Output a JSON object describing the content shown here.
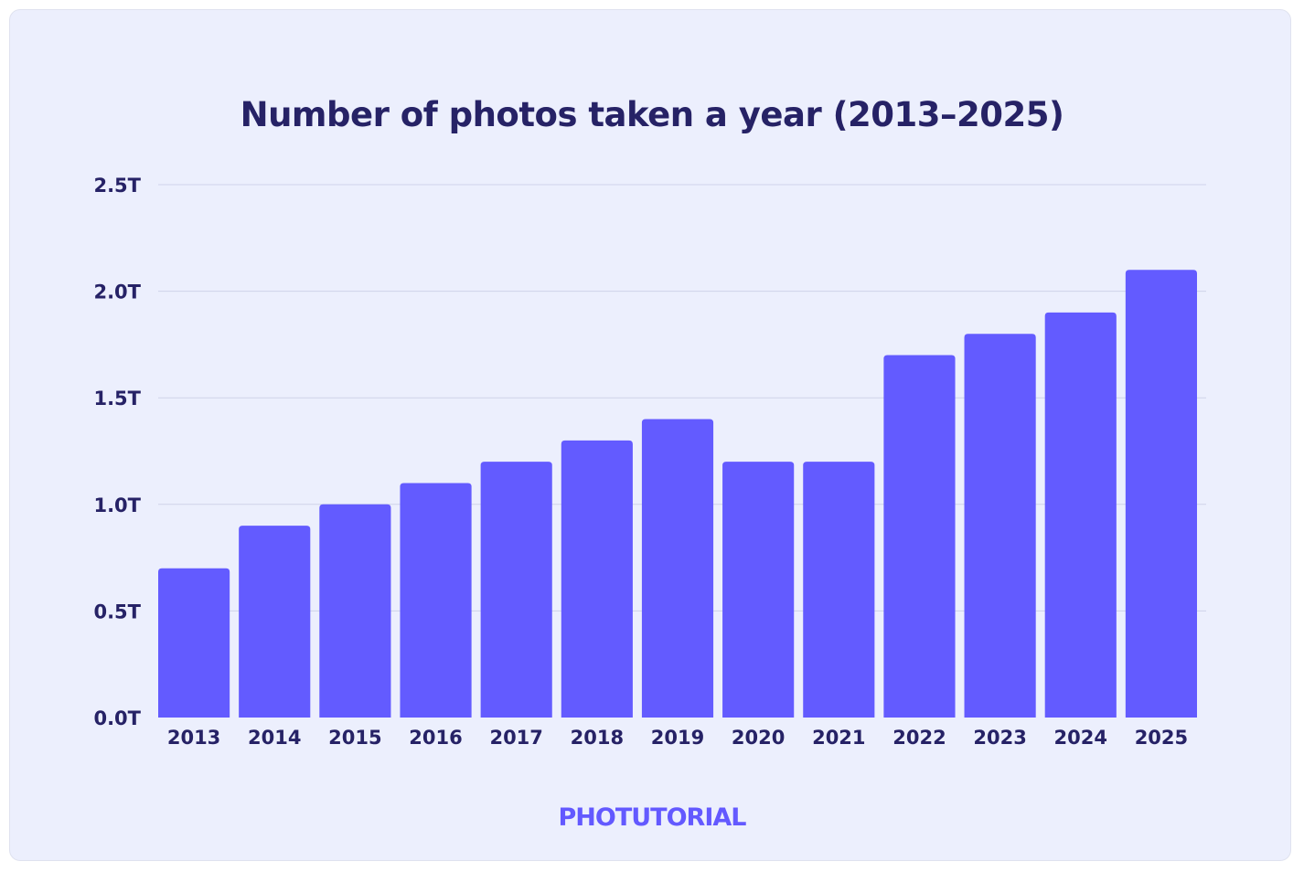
{
  "colors": {
    "bar": "#635bff",
    "title": "#262266",
    "grid": "#cfd3ea",
    "brand": "#6359ff",
    "background": "#eceffd"
  },
  "brand": "PHOTUTORIAL",
  "chart_data": {
    "type": "bar",
    "title": "Number of photos taken a year (2013–2025)",
    "xlabel": "",
    "ylabel": "",
    "categories": [
      "2013",
      "2014",
      "2015",
      "2016",
      "2017",
      "2018",
      "2019",
      "2020",
      "2021",
      "2022",
      "2023",
      "2024",
      "2025"
    ],
    "values": [
      0.7,
      0.9,
      1.0,
      1.1,
      1.2,
      1.3,
      1.4,
      1.2,
      1.2,
      1.7,
      1.8,
      1.9,
      2.1
    ],
    "unit": "T",
    "ylim": [
      0,
      2.5
    ],
    "yticks": [
      "0.0T",
      "0.5T",
      "1.0T",
      "1.5T",
      "2.0T",
      "2.5T"
    ],
    "grid": true,
    "legend": "none"
  }
}
